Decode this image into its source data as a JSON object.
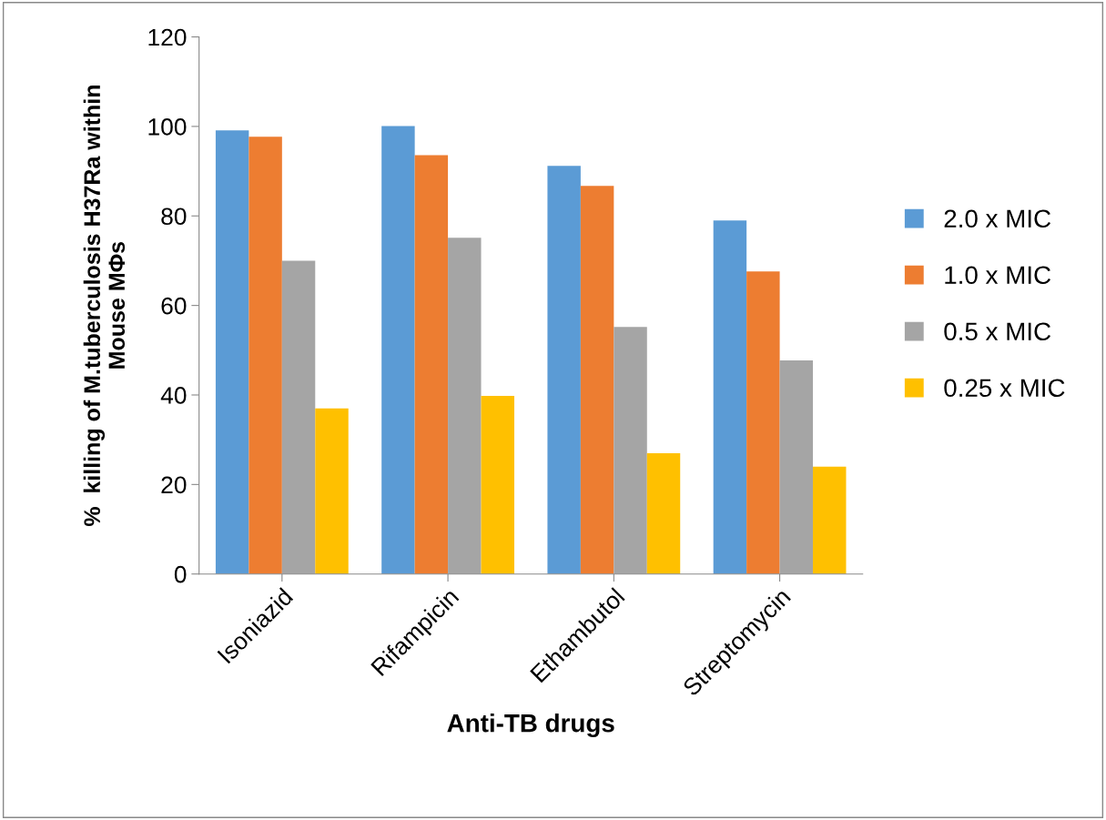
{
  "chart_data": {
    "type": "bar",
    "xlabel": "Anti-TB drugs",
    "ylabel": "%  killing of M.tuberculosis H37Ra within\nMouse MΦs",
    "categories": [
      "Isoniazid",
      "Rifampicin",
      "Ethambutol",
      "Streptomycin"
    ],
    "series": [
      {
        "name": "2.0 x MIC",
        "color": "#5b9bd5",
        "values": [
          99.1,
          100.1,
          91.2,
          79
        ]
      },
      {
        "name": "1.0 x MIC",
        "color": "#ed7d31",
        "values": [
          97.7,
          93.6,
          86.7,
          67.6
        ]
      },
      {
        "name": "0.5 x MIC",
        "color": "#a5a5a5",
        "values": [
          70,
          75.1,
          55.2,
          47.7
        ]
      },
      {
        "name": "0.25 x MIC",
        "color": "#ffc000",
        "values": [
          37,
          39.8,
          27,
          24
        ]
      }
    ],
    "ylim": [
      0,
      120
    ],
    "yticks": [
      0,
      20,
      40,
      60,
      80,
      100,
      120
    ],
    "grid": false,
    "legend": "right"
  }
}
